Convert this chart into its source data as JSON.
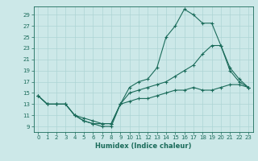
{
  "title": "",
  "xlabel": "Humidex (Indice chaleur)",
  "ylabel": "",
  "background_color": "#cce8e8",
  "grid_color": "#add4d4",
  "line_color": "#1a6b5a",
  "xlim": [
    -0.5,
    23.5
  ],
  "ylim": [
    8.0,
    30.5
  ],
  "xticks": [
    0,
    1,
    2,
    3,
    4,
    5,
    6,
    7,
    8,
    9,
    10,
    11,
    12,
    13,
    14,
    15,
    16,
    17,
    18,
    19,
    20,
    21,
    22,
    23
  ],
  "yticks": [
    9,
    11,
    13,
    15,
    17,
    19,
    21,
    23,
    25,
    27,
    29
  ],
  "line1_x": [
    0,
    1,
    2,
    3,
    4,
    5,
    6,
    7,
    8,
    9,
    10,
    11,
    12,
    13,
    14,
    15,
    16,
    17,
    18,
    19,
    20,
    21,
    22,
    23
  ],
  "line1_y": [
    14.5,
    13,
    13,
    13,
    11,
    10,
    9.5,
    9,
    9,
    13,
    16,
    17,
    17.5,
    19.5,
    25,
    27,
    30,
    29,
    27.5,
    27.5,
    23.5,
    19,
    17,
    16
  ],
  "line2_x": [
    0,
    1,
    2,
    3,
    4,
    5,
    6,
    7,
    8,
    9,
    10,
    11,
    12,
    13,
    14,
    15,
    16,
    17,
    18,
    19,
    20,
    21,
    22,
    23
  ],
  "line2_y": [
    14.5,
    13,
    13,
    13,
    11,
    10,
    9.5,
    9.5,
    9.5,
    13,
    15,
    15.5,
    16,
    16.5,
    17,
    18,
    19,
    20,
    22,
    23.5,
    23.5,
    19.5,
    17.5,
    16
  ],
  "line3_x": [
    0,
    1,
    2,
    3,
    4,
    5,
    6,
    7,
    8,
    9,
    10,
    11,
    12,
    13,
    14,
    15,
    16,
    17,
    18,
    19,
    20,
    21,
    22,
    23
  ],
  "line3_y": [
    14.5,
    13,
    13,
    13,
    11,
    10.5,
    10,
    9.5,
    9.5,
    13,
    13.5,
    14,
    14,
    14.5,
    15,
    15.5,
    15.5,
    16,
    15.5,
    15.5,
    16,
    16.5,
    16.5,
    16
  ],
  "tick_labelsize": 5,
  "xlabel_fontsize": 6,
  "marker_size": 3,
  "line_width": 0.8
}
